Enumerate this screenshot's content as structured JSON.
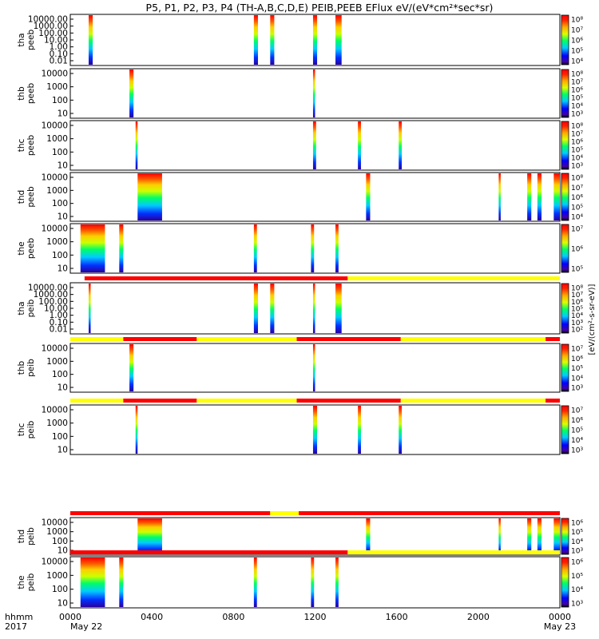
{
  "chart_data": {
    "type": "heatmap",
    "title": "P5, P1, P2, P3, P4 (TH-A,B,C,D,E) PEIB,PEEB EFlux eV/(eV*cm²*sec*sr)",
    "colorbar_unit": "[eV/(cm²-s-sr-eV)]",
    "x_axis": {
      "range_hours": [
        0,
        24
      ],
      "ticks": [
        "0000",
        "0400",
        "0800",
        "1200",
        "1600",
        "2000",
        "0000"
      ],
      "corner_top": "hhmm",
      "corner_bottom": "2017",
      "date_start": "May 22",
      "date_end": "May 23"
    },
    "panels": [
      {
        "name": "tha peeb",
        "label1": "tha",
        "label2": "peeb",
        "yticks": [
          "10000.00",
          "1000.00",
          "100.00",
          "10.00",
          "1.00",
          "0.10",
          "0.01"
        ],
        "cticks": [
          "10⁸",
          "10⁷",
          "10⁶",
          "10⁵",
          "10⁴"
        ],
        "bursts": [
          [
            0.9,
            1.1
          ],
          [
            9.0,
            9.2
          ],
          [
            9.8,
            10.0
          ],
          [
            11.9,
            12.1
          ],
          [
            13.0,
            13.3
          ]
        ],
        "bar_above": null
      },
      {
        "name": "thb peeb",
        "label1": "thb",
        "label2": "peeb",
        "yticks": [
          "10000",
          "1000",
          "100",
          "10"
        ],
        "cticks": [
          "10⁸",
          "10⁷",
          "10⁶",
          "10⁵",
          "10⁴",
          "10³"
        ],
        "bursts": [
          [
            2.9,
            3.1
          ],
          [
            11.9,
            12.0
          ]
        ],
        "bar_above": null
      },
      {
        "name": "thc peeb",
        "label1": "thc",
        "label2": "peeb",
        "yticks": [
          "10000",
          "1000",
          "100",
          "10"
        ],
        "cticks": [
          "10⁸",
          "10⁷",
          "10⁶",
          "10⁵",
          "10⁴",
          "10³"
        ],
        "bursts": [
          [
            3.2,
            3.3
          ],
          [
            11.9,
            12.05
          ],
          [
            14.1,
            14.25
          ],
          [
            16.1,
            16.25
          ]
        ],
        "bar_above": null
      },
      {
        "name": "thd peeb",
        "label1": "thd",
        "label2": "peeb",
        "yticks": [
          "10000",
          "1000",
          "100",
          "10"
        ],
        "cticks": [
          "10⁸",
          "10⁷",
          "10⁶",
          "10⁵",
          "10⁴"
        ],
        "bursts": [
          [
            3.3,
            4.5
          ],
          [
            14.5,
            14.7
          ],
          [
            21.0,
            21.1
          ],
          [
            22.4,
            22.6
          ],
          [
            22.9,
            23.1
          ],
          [
            23.7,
            24.0
          ]
        ],
        "bar_above": null
      },
      {
        "name": "the peeb",
        "label1": "the",
        "label2": "peeb",
        "yticks": [
          "10000",
          "1000",
          "100",
          "10"
        ],
        "cticks": [
          "10⁷",
          "10⁶",
          "10⁵"
        ],
        "bursts": [
          [
            0.5,
            1.7
          ],
          [
            2.4,
            2.6
          ],
          [
            9.0,
            9.15
          ],
          [
            11.8,
            11.95
          ],
          [
            13.0,
            13.15
          ]
        ],
        "bar_above": null
      },
      {
        "name": "tha peib",
        "label1": "tha",
        "label2": "peib",
        "yticks": [
          "10000.00",
          "1000.00",
          "100.00",
          "10.00",
          "1.00",
          "0.10",
          "0.01"
        ],
        "cticks": [
          "10⁸",
          "10⁷",
          "10⁶",
          "10⁵",
          "10⁴",
          "10³",
          "10²"
        ],
        "bursts": [
          [
            0.9,
            1.0
          ],
          [
            9.0,
            9.2
          ],
          [
            9.8,
            10.0
          ],
          [
            11.9,
            12.0
          ],
          [
            13.0,
            13.3
          ]
        ],
        "bar_above": [
          [
            "red",
            0.7,
            13.6
          ],
          [
            "yellow",
            13.6,
            24.0
          ]
        ]
      },
      {
        "name": "thb peib",
        "label1": "thb",
        "label2": "peib",
        "yticks": [
          "10000",
          "1000",
          "100",
          "10"
        ],
        "cticks": [
          "10⁷",
          "10⁶",
          "10⁵",
          "10⁴",
          "10³"
        ],
        "bursts": [
          [
            2.9,
            3.1
          ],
          [
            11.9,
            12.0
          ]
        ],
        "bar_above": [
          [
            "yellow",
            0.0,
            2.6
          ],
          [
            "red",
            2.6,
            6.2
          ],
          [
            "yellow",
            6.2,
            11.1
          ],
          [
            "red",
            11.1,
            16.2
          ],
          [
            "yellow",
            16.2,
            23.3
          ],
          [
            "red",
            23.3,
            24.0
          ]
        ]
      },
      {
        "name": "thc peib",
        "label1": "thc",
        "label2": "peib",
        "yticks": [
          "10000",
          "1000",
          "100",
          "10"
        ],
        "cticks": [
          "10⁷",
          "10⁶",
          "10⁵",
          "10⁴",
          "10³"
        ],
        "bursts": [
          [
            3.2,
            3.3
          ],
          [
            11.9,
            12.1
          ],
          [
            14.1,
            14.25
          ],
          [
            16.1,
            16.25
          ]
        ],
        "bar_above": [
          [
            "yellow",
            0.0,
            2.6
          ],
          [
            "red",
            2.6,
            6.2
          ],
          [
            "yellow",
            6.2,
            11.1
          ],
          [
            "red",
            11.1,
            16.2
          ],
          [
            "yellow",
            16.2,
            23.3
          ],
          [
            "red",
            23.3,
            24.0
          ]
        ]
      },
      {
        "name": "thd peib",
        "label1": "thd",
        "label2": "peib",
        "yticks": [
          "10000",
          "1000",
          "100",
          "10"
        ],
        "cticks": [
          "10⁶",
          "10⁵",
          "10⁴",
          "10³"
        ],
        "bursts": [
          [
            3.3,
            4.5
          ],
          [
            14.5,
            14.7
          ],
          [
            21.0,
            21.1
          ],
          [
            22.4,
            22.6
          ],
          [
            22.9,
            23.1
          ],
          [
            23.7,
            24.0
          ]
        ],
        "bar_above": [
          [
            "red",
            0.0,
            9.8
          ],
          [
            "yellow",
            9.8,
            11.2
          ],
          [
            "red",
            11.2,
            24.0
          ]
        ]
      },
      {
        "name": "the peib",
        "label1": "the",
        "label2": "peib",
        "yticks": [
          "10000",
          "1000",
          "100",
          "10"
        ],
        "cticks": [
          "10⁶",
          "10⁵",
          "10⁴",
          "10³"
        ],
        "bursts": [
          [
            0.5,
            1.7
          ],
          [
            2.4,
            2.6
          ],
          [
            9.0,
            9.15
          ],
          [
            11.8,
            11.95
          ],
          [
            13.0,
            13.15
          ]
        ],
        "bar_above": [
          [
            "red",
            0.0,
            13.6
          ],
          [
            "yellow",
            13.6,
            24.0
          ]
        ]
      }
    ]
  }
}
